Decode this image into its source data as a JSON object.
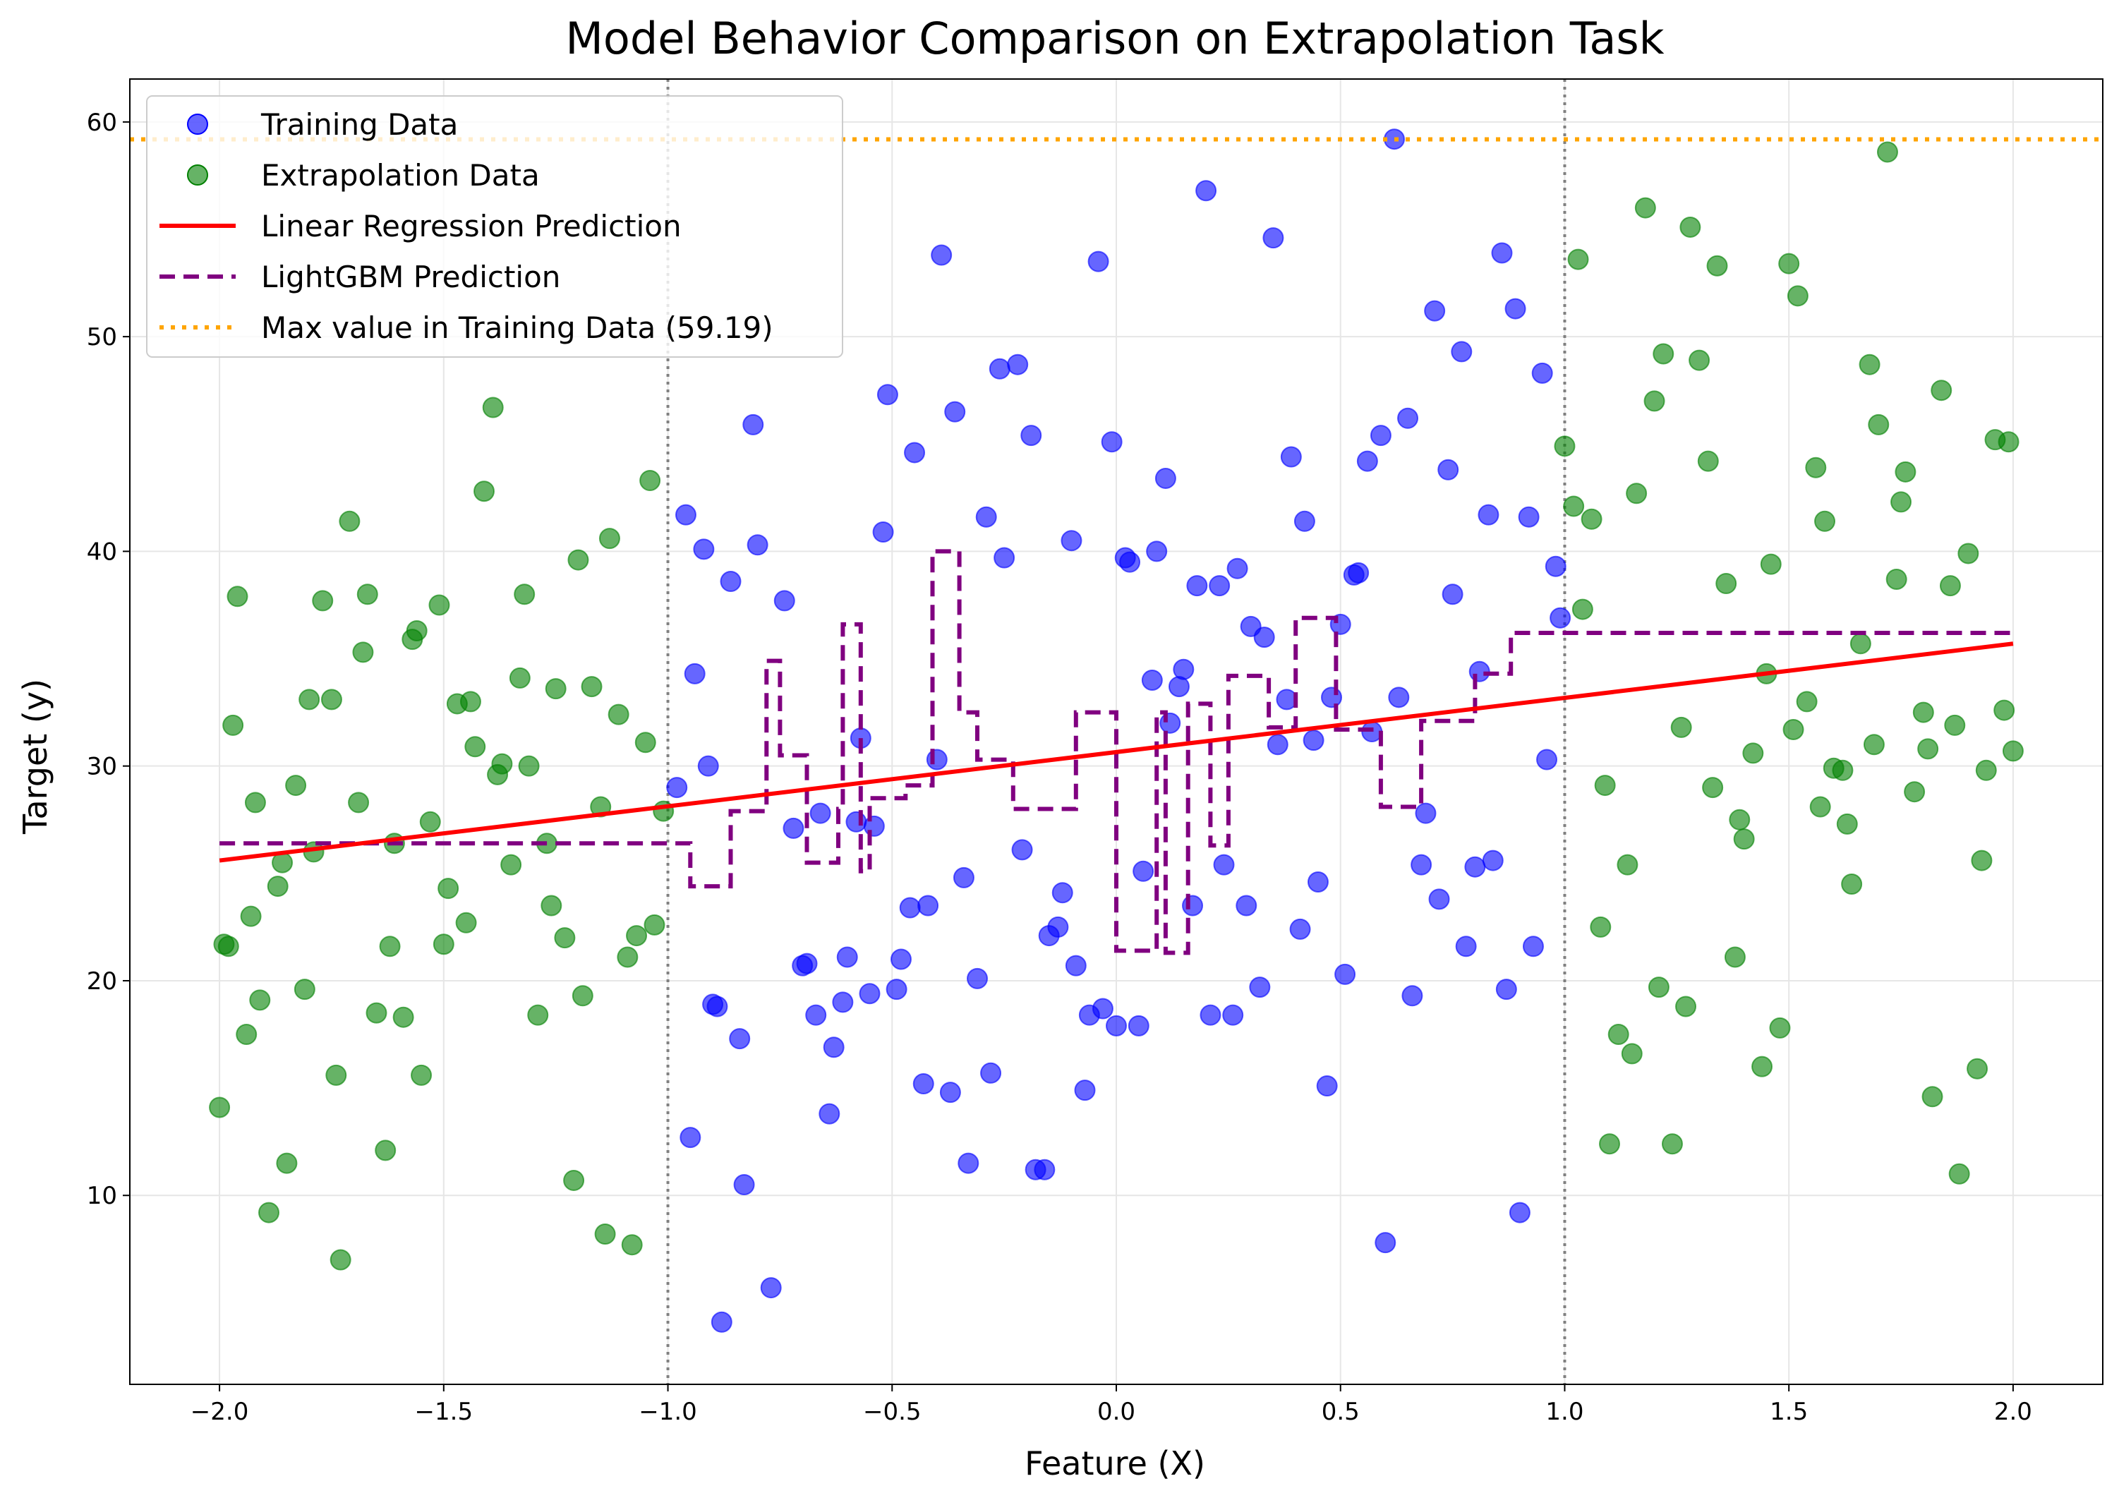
{
  "chart_data": {
    "type": "scatter",
    "title": "Model Behavior Comparison on Extrapolation Task",
    "xlabel": "Feature (X)",
    "ylabel": "Target (y)",
    "xlim": [
      -2.2,
      2.2
    ],
    "ylim": [
      1.2,
      62
    ],
    "x_ticks": [
      -2.0,
      -1.5,
      -1.0,
      -0.5,
      0.0,
      0.5,
      1.0,
      1.5,
      2.0
    ],
    "x_tick_labels": [
      "−2.0",
      "−1.5",
      "−1.0",
      "−0.5",
      "0.0",
      "0.5",
      "1.0",
      "1.5",
      "2.0"
    ],
    "y_ticks": [
      10,
      20,
      30,
      40,
      50,
      60
    ],
    "y_tick_labels": [
      "10",
      "20",
      "30",
      "40",
      "50",
      "60"
    ],
    "grid": true,
    "legend_position": "top-left",
    "colors": {
      "training": "#0000ff",
      "extrapolation": "#008000",
      "linear": "#ff0000",
      "lightgbm": "#800080",
      "max_line": "#ffa500",
      "boundary": "#808080"
    },
    "legend": [
      {
        "label": "Training Data",
        "kind": "dot",
        "color": "#0000ff"
      },
      {
        "label": "Extrapolation Data",
        "kind": "dot",
        "color": "#008000"
      },
      {
        "label": "Linear Regression Prediction",
        "kind": "solid",
        "color": "#ff0000"
      },
      {
        "label": "LightGBM Prediction",
        "kind": "dashed",
        "color": "#800080"
      },
      {
        "label": "Max value in Training Data (59.19)",
        "kind": "dotted",
        "color": "#ffa500"
      }
    ],
    "reference_lines": {
      "vertical_dotted_x": [
        -1.0,
        1.0
      ],
      "max_value_y": 59.19
    },
    "linear_regression": {
      "x": [
        -2.0,
        2.0
      ],
      "y": [
        25.6,
        35.7
      ]
    },
    "lightgbm": {
      "x": [
        -2.0,
        -0.95,
        -0.95,
        -0.86,
        -0.86,
        -0.78,
        -0.78,
        -0.75,
        -0.75,
        -0.69,
        -0.69,
        -0.62,
        -0.62,
        -0.61,
        -0.61,
        -0.57,
        -0.57,
        -0.55,
        -0.55,
        -0.47,
        -0.47,
        -0.41,
        -0.41,
        -0.35,
        -0.35,
        -0.31,
        -0.31,
        -0.23,
        -0.23,
        -0.09,
        -0.09,
        0.0,
        0.0,
        0.09,
        0.09,
        0.11,
        0.11,
        0.16,
        0.16,
        0.21,
        0.21,
        0.25,
        0.25,
        0.34,
        0.34,
        0.4,
        0.4,
        0.49,
        0.49,
        0.59,
        0.59,
        0.68,
        0.68,
        0.8,
        0.8,
        0.88,
        0.88,
        0.94,
        0.94,
        2.0
      ],
      "y": [
        26.4,
        26.4,
        24.4,
        24.4,
        27.9,
        27.9,
        34.9,
        34.9,
        30.5,
        30.5,
        25.5,
        25.5,
        28.0,
        28.0,
        36.6,
        36.6,
        25.1,
        25.1,
        28.5,
        28.5,
        29.1,
        29.1,
        40.0,
        40.0,
        32.5,
        32.5,
        30.3,
        30.3,
        28.0,
        28.0,
        32.5,
        32.5,
        21.4,
        21.4,
        32.5,
        32.5,
        21.3,
        21.3,
        32.9,
        32.9,
        26.3,
        26.3,
        34.2,
        34.2,
        31.8,
        31.8,
        36.9,
        36.9,
        31.7,
        31.7,
        28.1,
        28.1,
        32.1,
        32.1,
        34.3,
        34.3,
        36.2,
        36.2,
        36.2,
        36.2
      ]
    },
    "series": [
      {
        "name": "Training Data",
        "x": [
          -0.98,
          -0.96,
          -0.95,
          -0.94,
          -0.91,
          -0.9,
          -0.88,
          -0.86,
          -0.83,
          -0.8,
          -0.77,
          -0.74,
          -0.72,
          -0.7,
          -0.66,
          -0.63,
          -0.6,
          -0.57,
          -0.54,
          -0.51,
          -0.48,
          -0.45,
          -0.42,
          -0.39,
          -0.36,
          -0.33,
          -0.29,
          -0.26,
          -0.22,
          -0.19,
          -0.16,
          -0.13,
          -0.1,
          -0.07,
          -0.04,
          -0.01,
          0.02,
          0.05,
          0.08,
          0.11,
          0.14,
          0.17,
          0.2,
          0.23,
          0.26,
          0.29,
          0.32,
          0.35,
          0.38,
          0.41,
          0.44,
          0.47,
          0.5,
          0.53,
          0.56,
          0.59,
          0.62,
          0.65,
          0.68,
          0.71,
          0.74,
          0.77,
          0.8,
          0.83,
          0.86,
          0.89,
          0.92,
          0.95,
          0.98,
          0.99,
          -0.92,
          -0.89,
          -0.84,
          -0.81,
          -0.69,
          -0.67,
          -0.64,
          -0.61,
          -0.58,
          -0.55,
          -0.52,
          -0.49,
          -0.46,
          -0.43,
          -0.4,
          -0.37,
          -0.34,
          -0.31,
          -0.28,
          -0.25,
          -0.21,
          -0.18,
          -0.15,
          -0.12,
          -0.09,
          -0.06,
          -0.03,
          0.0,
          0.03,
          0.06,
          0.09,
          0.12,
          0.15,
          0.18,
          0.21,
          0.24,
          0.27,
          0.3,
          0.33,
          0.36,
          0.39,
          0.42,
          0.45,
          0.48,
          0.51,
          0.54,
          0.57,
          0.6,
          0.63,
          0.66,
          0.69,
          0.72,
          0.75,
          0.78,
          0.81,
          0.84,
          0.87,
          0.9,
          0.93,
          0.96
        ],
        "y": [
          29.0,
          41.7,
          12.7,
          34.3,
          30.0,
          18.9,
          4.1,
          38.6,
          10.5,
          40.3,
          5.7,
          37.7,
          27.1,
          20.7,
          27.8,
          16.9,
          21.1,
          31.3,
          27.2,
          47.3,
          21.0,
          44.6,
          23.5,
          53.8,
          46.5,
          11.5,
          41.6,
          48.5,
          48.7,
          45.4,
          11.2,
          22.5,
          40.5,
          14.9,
          53.5,
          45.1,
          39.7,
          17.9,
          34.0,
          43.4,
          33.7,
          23.5,
          56.8,
          38.4,
          18.4,
          23.5,
          19.7,
          54.6,
          33.1,
          22.4,
          31.2,
          15.1,
          36.6,
          38.9,
          44.2,
          45.4,
          59.2,
          46.2,
          25.4,
          51.2,
          43.8,
          49.3,
          25.3,
          41.7,
          53.9,
          51.3,
          41.6,
          48.3,
          39.3,
          36.9,
          40.1,
          18.8,
          17.3,
          45.9,
          20.8,
          18.4,
          13.8,
          19.0,
          27.4,
          19.4,
          40.9,
          19.6,
          23.4,
          15.2,
          30.3,
          14.8,
          24.8,
          20.1,
          15.7,
          39.7,
          26.1,
          11.2,
          22.1,
          24.1,
          20.7,
          18.4,
          18.7,
          17.9,
          39.5,
          25.1,
          40.0,
          32.0,
          34.5,
          38.4,
          18.4,
          25.4,
          39.2,
          36.5,
          36.0,
          31.0,
          44.4,
          41.4,
          24.6,
          33.2,
          20.3,
          39.0,
          31.6,
          7.8,
          33.2,
          19.3,
          27.8,
          23.8,
          38.0,
          21.6,
          34.4,
          25.6,
          19.6,
          9.2,
          21.6,
          30.3
        ]
      },
      {
        "name": "Extrapolation Data",
        "x": [
          -2.0,
          -1.99,
          -1.97,
          -1.96,
          -1.94,
          -1.93,
          -1.91,
          -1.89,
          -1.87,
          -1.85,
          -1.83,
          -1.81,
          -1.79,
          -1.77,
          -1.75,
          -1.73,
          -1.71,
          -1.69,
          -1.67,
          -1.65,
          -1.63,
          -1.61,
          -1.59,
          -1.57,
          -1.55,
          -1.53,
          -1.51,
          -1.49,
          -1.47,
          -1.45,
          -1.43,
          -1.41,
          -1.39,
          -1.37,
          -1.35,
          -1.33,
          -1.31,
          -1.29,
          -1.27,
          -1.25,
          -1.23,
          -1.21,
          -1.19,
          -1.17,
          -1.15,
          -1.13,
          -1.11,
          -1.09,
          -1.07,
          -1.05,
          -1.03,
          -1.01,
          -1.98,
          -1.92,
          -1.86,
          -1.8,
          -1.74,
          -1.68,
          -1.62,
          -1.56,
          -1.5,
          -1.44,
          -1.38,
          -1.32,
          -1.26,
          -1.2,
          -1.14,
          -1.08,
          -1.04,
          1.0,
          1.02,
          1.04,
          1.06,
          1.08,
          1.1,
          1.12,
          1.14,
          1.16,
          1.18,
          1.2,
          1.22,
          1.24,
          1.26,
          1.28,
          1.3,
          1.32,
          1.34,
          1.36,
          1.38,
          1.4,
          1.42,
          1.44,
          1.46,
          1.48,
          1.5,
          1.52,
          1.54,
          1.56,
          1.58,
          1.6,
          1.62,
          1.64,
          1.66,
          1.68,
          1.7,
          1.72,
          1.74,
          1.76,
          1.78,
          1.8,
          1.82,
          1.84,
          1.86,
          1.88,
          1.9,
          1.92,
          1.94,
          1.96,
          1.98,
          2.0,
          1.03,
          1.09,
          1.15,
          1.21,
          1.27,
          1.33,
          1.39,
          1.45,
          1.51,
          1.57,
          1.63,
          1.69,
          1.75,
          1.81,
          1.87,
          1.93,
          1.99
        ],
        "y": [
          14.1,
          21.7,
          31.9,
          37.9,
          17.5,
          23.0,
          19.1,
          9.2,
          24.4,
          11.5,
          29.1,
          19.6,
          26.0,
          37.7,
          33.1,
          7.0,
          41.4,
          28.3,
          38.0,
          18.5,
          12.1,
          26.4,
          18.3,
          35.9,
          15.6,
          27.4,
          37.5,
          24.3,
          32.9,
          22.7,
          30.9,
          42.8,
          46.7,
          30.1,
          25.4,
          34.1,
          30.0,
          18.4,
          26.4,
          33.6,
          22.0,
          10.7,
          19.3,
          33.7,
          28.1,
          40.6,
          32.4,
          21.1,
          22.1,
          31.1,
          22.6,
          27.9,
          21.6,
          28.3,
          25.5,
          33.1,
          15.6,
          35.3,
          21.6,
          36.3,
          21.7,
          33.0,
          29.6,
          38.0,
          23.5,
          39.6,
          8.2,
          7.7,
          43.3,
          44.9,
          42.1,
          37.3,
          41.5,
          22.5,
          12.4,
          17.5,
          25.4,
          42.7,
          56.0,
          47.0,
          49.2,
          12.4,
          31.8,
          55.1,
          48.9,
          44.2,
          53.3,
          38.5,
          21.1,
          26.6,
          30.6,
          16.0,
          39.4,
          17.8,
          53.4,
          51.9,
          33.0,
          43.9,
          41.4,
          29.9,
          29.8,
          24.5,
          35.7,
          48.7,
          45.9,
          58.6,
          38.7,
          43.7,
          28.8,
          32.5,
          14.6,
          47.5,
          38.4,
          11.0,
          39.9,
          15.9,
          29.8,
          45.2,
          32.6,
          30.7,
          53.6,
          29.1,
          16.6,
          19.7,
          18.8,
          29.0,
          27.5,
          34.3,
          31.7,
          28.1,
          27.3,
          31.0,
          42.3,
          30.8,
          31.9,
          25.6,
          45.1
        ]
      }
    ]
  }
}
